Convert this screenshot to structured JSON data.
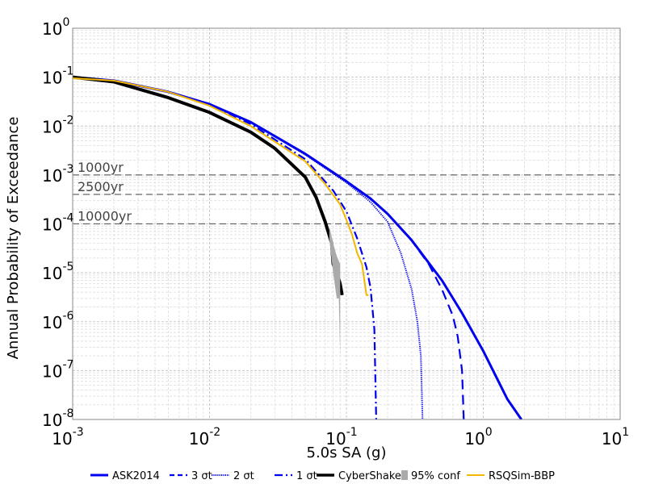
{
  "chart_data": {
    "type": "line",
    "xlabel": "5.0s SA (g)",
    "ylabel": "Annual Probability of Exceedance",
    "x_scale": "log",
    "y_scale": "log",
    "xlim": [
      0.001,
      10
    ],
    "ylim": [
      1e-08,
      1
    ],
    "grid": true,
    "legend_position": "bottom",
    "x_ticks": [
      {
        "base": "10",
        "exp": "-3"
      },
      {
        "base": "10",
        "exp": "-2"
      },
      {
        "base": "10",
        "exp": "-1"
      },
      {
        "base": "10",
        "exp": "0"
      },
      {
        "base": "10",
        "exp": "1"
      }
    ],
    "y_ticks": [
      {
        "base": "10",
        "exp": "0"
      },
      {
        "base": "10",
        "exp": "-1"
      },
      {
        "base": "10",
        "exp": "-2"
      },
      {
        "base": "10",
        "exp": "-3"
      },
      {
        "base": "10",
        "exp": "-4"
      },
      {
        "base": "10",
        "exp": "-5"
      },
      {
        "base": "10",
        "exp": "-6"
      },
      {
        "base": "10",
        "exp": "-7"
      },
      {
        "base": "10",
        "exp": "-8"
      }
    ],
    "reference_lines": [
      {
        "label": "1000yr",
        "y": 0.001
      },
      {
        "label": "2500yr",
        "y": 0.0004
      },
      {
        "label": "10000yr",
        "y": 0.0001
      }
    ],
    "series": [
      {
        "name": "ASK2014",
        "color": "#0000ee",
        "style": "solid",
        "points": [
          [
            0.001,
            0.1
          ],
          [
            0.002,
            0.085
          ],
          [
            0.005,
            0.05
          ],
          [
            0.01,
            0.028
          ],
          [
            0.02,
            0.012
          ],
          [
            0.05,
            0.0027
          ],
          [
            0.1,
            0.00074
          ],
          [
            0.15,
            0.00033
          ],
          [
            0.2,
            0.00016
          ],
          [
            0.3,
            4.6e-05
          ],
          [
            0.5,
            6.9e-06
          ],
          [
            0.7,
            1.5e-06
          ],
          [
            1.0,
            2.5e-07
          ],
          [
            1.5,
            2.6e-08
          ],
          [
            1.9,
            1e-08
          ]
        ]
      },
      {
        "name": "3 σt",
        "color": "#0000ee",
        "style": "dashed",
        "points": [
          [
            0.001,
            0.1
          ],
          [
            0.002,
            0.085
          ],
          [
            0.005,
            0.05
          ],
          [
            0.01,
            0.028
          ],
          [
            0.02,
            0.012
          ],
          [
            0.05,
            0.0027
          ],
          [
            0.1,
            0.00074
          ],
          [
            0.15,
            0.00033
          ],
          [
            0.2,
            0.00016
          ],
          [
            0.3,
            4.5e-05
          ],
          [
            0.4,
            1.5e-05
          ],
          [
            0.5,
            4.5e-06
          ],
          [
            0.6,
            1.3e-06
          ],
          [
            0.65,
            5e-07
          ],
          [
            0.7,
            1e-07
          ],
          [
            0.72,
            1e-08
          ]
        ]
      },
      {
        "name": "2 σt",
        "color": "#0000ee",
        "style": "dotted",
        "points": [
          [
            0.001,
            0.1
          ],
          [
            0.002,
            0.085
          ],
          [
            0.005,
            0.05
          ],
          [
            0.01,
            0.028
          ],
          [
            0.02,
            0.012
          ],
          [
            0.05,
            0.0026
          ],
          [
            0.1,
            0.0007
          ],
          [
            0.15,
            0.00028
          ],
          [
            0.2,
            0.00011
          ],
          [
            0.25,
            2.5e-05
          ],
          [
            0.3,
            4.5e-06
          ],
          [
            0.33,
            1e-06
          ],
          [
            0.35,
            2e-07
          ],
          [
            0.36,
            1e-08
          ]
        ]
      },
      {
        "name": "1 σt",
        "color": "#0000ee",
        "style": "dashdot",
        "points": [
          [
            0.001,
            0.1
          ],
          [
            0.002,
            0.085
          ],
          [
            0.005,
            0.05
          ],
          [
            0.01,
            0.027
          ],
          [
            0.02,
            0.011
          ],
          [
            0.05,
            0.0021
          ],
          [
            0.08,
            0.00048
          ],
          [
            0.1,
            0.00018
          ],
          [
            0.12,
            5e-05
          ],
          [
            0.14,
            1.3e-05
          ],
          [
            0.15,
            5e-06
          ],
          [
            0.16,
            7e-07
          ],
          [
            0.165,
            1e-08
          ]
        ]
      },
      {
        "name": "CyberShake",
        "color": "#000000",
        "style": "solid",
        "points": [
          [
            0.001,
            0.1
          ],
          [
            0.002,
            0.08
          ],
          [
            0.005,
            0.038
          ],
          [
            0.01,
            0.019
          ],
          [
            0.02,
            0.0075
          ],
          [
            0.03,
            0.0035
          ],
          [
            0.05,
            0.0009
          ],
          [
            0.06,
            0.00035
          ],
          [
            0.07,
            0.00011
          ],
          [
            0.078,
            4e-05
          ],
          [
            0.08,
            1.5e-05
          ],
          [
            0.085,
            1e-05
          ],
          [
            0.09,
            6e-06
          ],
          [
            0.093,
            3.5e-06
          ]
        ]
      },
      {
        "name": "95% conf",
        "color": "#aaaaaa",
        "style": "band",
        "upper": [
          [
            0.075,
            9e-05
          ],
          [
            0.08,
            4e-05
          ],
          [
            0.085,
            2.2e-05
          ],
          [
            0.09,
            1.5e-05
          ]
        ],
        "lower": [
          [
            0.075,
            5e-05
          ],
          [
            0.08,
            1e-05
          ],
          [
            0.085,
            3e-06
          ],
          [
            0.088,
            3e-06
          ],
          [
            0.09,
            2e-07
          ]
        ]
      },
      {
        "name": "RSQSim-BBP",
        "color": "#f2b700",
        "style": "solid",
        "points": [
          [
            0.001,
            0.095
          ],
          [
            0.002,
            0.085
          ],
          [
            0.005,
            0.05
          ],
          [
            0.01,
            0.026
          ],
          [
            0.02,
            0.01
          ],
          [
            0.05,
            0.0019
          ],
          [
            0.07,
            0.00065
          ],
          [
            0.09,
            0.00025
          ],
          [
            0.1,
            0.00012
          ],
          [
            0.11,
            6e-05
          ],
          [
            0.12,
            2.5e-05
          ],
          [
            0.13,
            1.5e-05
          ],
          [
            0.14,
            3.5e-06
          ],
          [
            0.145,
            3.5e-06
          ]
        ]
      }
    ]
  }
}
